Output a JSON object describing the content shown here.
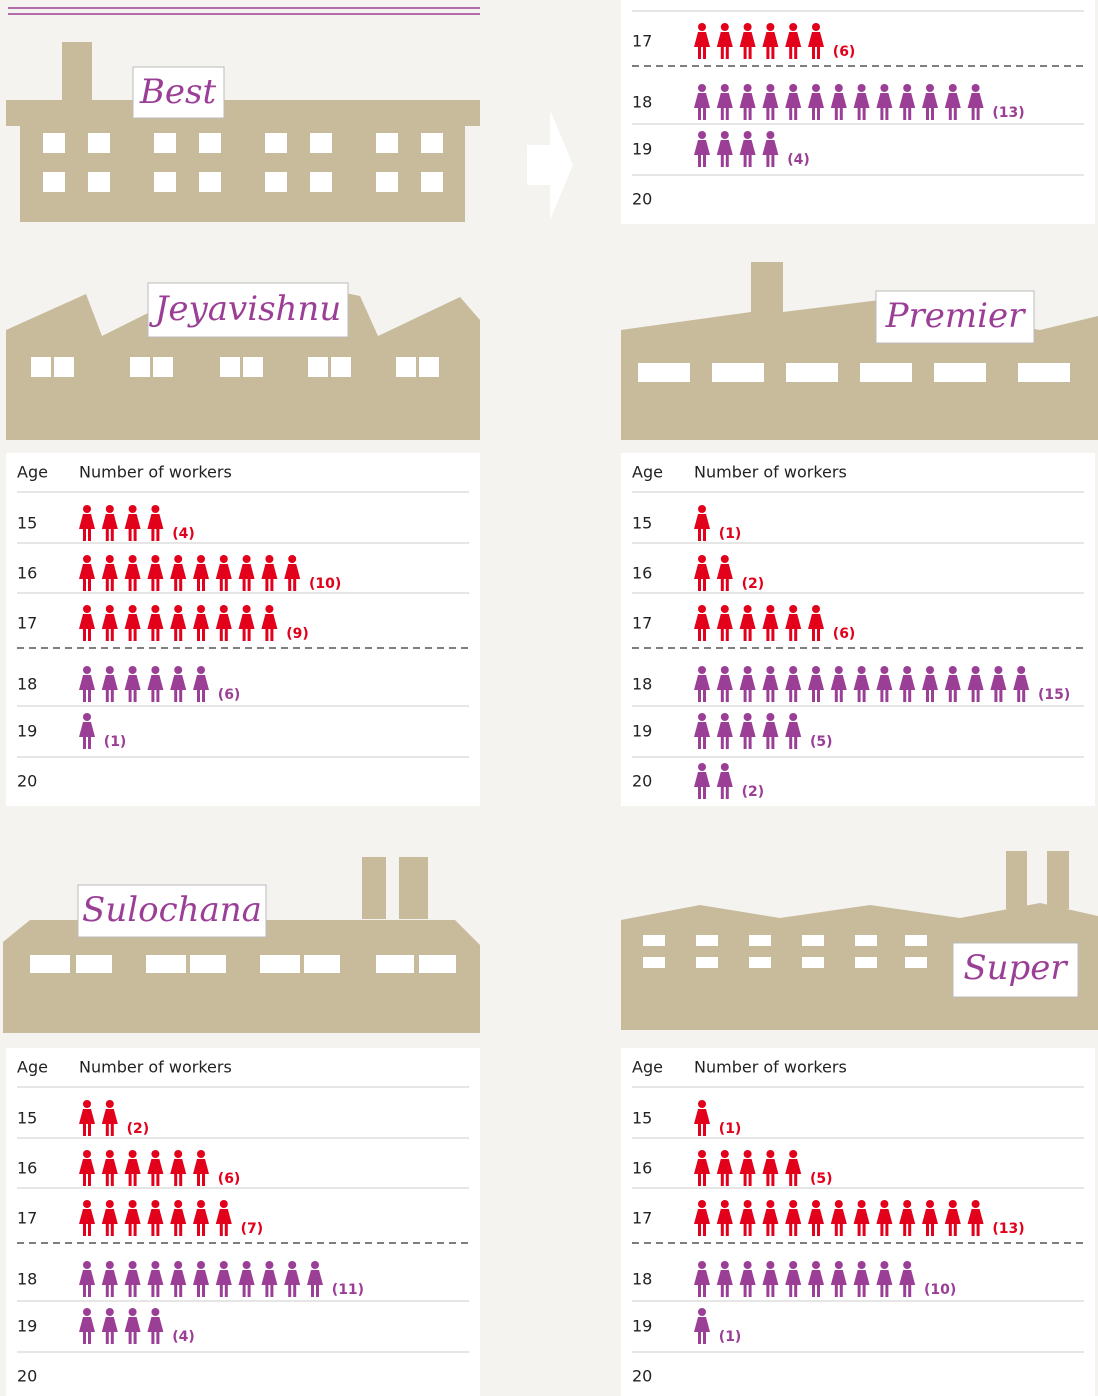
{
  "table_header": {
    "age": "Age",
    "workers": "Number of workers"
  },
  "factories": [
    {
      "name": "Best",
      "rows": [
        {
          "age": "17",
          "count": 6,
          "count_label": "(6)",
          "color": "#e2001a"
        },
        {
          "age": "18",
          "count": 13,
          "count_label": "(13)",
          "color": "#9b3f96"
        },
        {
          "age": "19",
          "count": 4,
          "count_label": "(4)",
          "color": "#9b3f96"
        },
        {
          "age": "20"
        }
      ]
    },
    {
      "name": "Jeyavishnu",
      "rows": [
        {
          "age": "15",
          "count": 4,
          "count_label": "(4)",
          "color": "#e2001a"
        },
        {
          "age": "16",
          "count": 10,
          "count_label": "(10)",
          "color": "#e2001a"
        },
        {
          "age": "17",
          "count": 9,
          "count_label": "(9)",
          "color": "#e2001a"
        },
        {
          "age": "18",
          "count": 6,
          "count_label": "(6)",
          "color": "#9b3f96"
        },
        {
          "age": "19",
          "count": 1,
          "count_label": "(1)",
          "color": "#9b3f96"
        },
        {
          "age": "20"
        }
      ]
    },
    {
      "name": "Premier",
      "rows": [
        {
          "age": "15",
          "count": 1,
          "count_label": "(1)",
          "color": "#e2001a"
        },
        {
          "age": "16",
          "count": 2,
          "count_label": "(2)",
          "color": "#e2001a"
        },
        {
          "age": "17",
          "count": 6,
          "count_label": "(6)",
          "color": "#e2001a"
        },
        {
          "age": "18",
          "count": 15,
          "count_label": "(15)",
          "color": "#9b3f96"
        },
        {
          "age": "19",
          "count": 5,
          "count_label": "(5)",
          "color": "#9b3f96"
        },
        {
          "age": "20",
          "count": 2,
          "count_label": "(2)",
          "color": "#9b3f96"
        }
      ]
    },
    {
      "name": "Sulochana",
      "rows": [
        {
          "age": "15",
          "count": 2,
          "count_label": "(2)",
          "color": "#e2001a"
        },
        {
          "age": "16",
          "count": 6,
          "count_label": "(6)",
          "color": "#e2001a"
        },
        {
          "age": "17",
          "count": 7,
          "count_label": "(7)",
          "color": "#e2001a"
        },
        {
          "age": "18",
          "count": 11,
          "count_label": "(11)",
          "color": "#9b3f96"
        },
        {
          "age": "19",
          "count": 4,
          "count_label": "(4)",
          "color": "#9b3f96"
        },
        {
          "age": "20"
        }
      ]
    },
    {
      "name": "Super",
      "rows": [
        {
          "age": "15",
          "count": 1,
          "count_label": "(1)",
          "color": "#e2001a"
        },
        {
          "age": "16",
          "count": 5,
          "count_label": "(5)",
          "color": "#e2001a"
        },
        {
          "age": "17",
          "count": 13,
          "count_label": "(13)",
          "color": "#e2001a"
        },
        {
          "age": "18",
          "count": 10,
          "count_label": "(10)",
          "color": "#9b3f96"
        },
        {
          "age": "19",
          "count": 1,
          "count_label": "(1)",
          "color": "#9b3f96"
        },
        {
          "age": "20"
        }
      ]
    }
  ]
}
